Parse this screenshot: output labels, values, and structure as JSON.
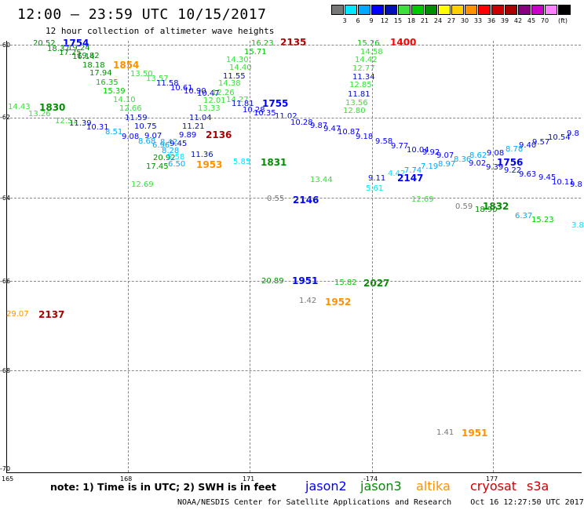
{
  "title": "12:00 – 23:59 UTC 10/15/2017",
  "subtitle": "12 hour collection of altimeter wave heights",
  "color_legend": {
    "colors": [
      "#777777",
      "#00e7ff",
      "#00a9ff",
      "#0000ff",
      "#000fba",
      "#3be03b",
      "#00c900",
      "#008f00",
      "#ffff00",
      "#ffd000",
      "#ff9100",
      "#ff0000",
      "#cc0000",
      "#aa0000",
      "#880080",
      "#ca00ca",
      "#ff80ff",
      "#000000"
    ],
    "ticks": [
      "3",
      "6",
      "9",
      "12",
      "15",
      "18",
      "21",
      "24",
      "27",
      "30",
      "33",
      "36",
      "39",
      "42",
      "45",
      "70"
    ],
    "unit": "(ft)"
  },
  "axes": {
    "y_labels": [
      "-60",
      "-62",
      "-64",
      "-66",
      "-68",
      "-70"
    ],
    "x_labels": [
      "165",
      "168",
      "171",
      "-174",
      "177"
    ]
  },
  "readings": [
    {
      "t": "20.52",
      "c": "#008f00"
    },
    {
      "t": "18.37",
      "c": "#008f00"
    },
    {
      "t": "17.25",
      "c": "#008f00"
    },
    {
      "t": "16.14",
      "c": "#008f00"
    },
    {
      "t": "19.24",
      "c": "#008f00"
    },
    {
      "t": "19.82",
      "c": "#008f00"
    },
    {
      "t": "18.18",
      "c": "#008f00"
    },
    {
      "t": "17.94",
      "c": "#008f00"
    },
    {
      "t": "16.35",
      "c": "#00c900"
    },
    {
      "t": "15.39",
      "c": "#00c900"
    },
    {
      "t": "14.10",
      "c": "#3be03b"
    },
    {
      "t": "12.66",
      "c": "#3be03b"
    },
    {
      "t": "13.50",
      "c": "#3be03b"
    },
    {
      "t": "13.57",
      "c": "#3be03b"
    },
    {
      "t": "11.59",
      "c": "#000fba"
    },
    {
      "t": "10.75",
      "c": "#0000ff"
    },
    {
      "t": "9.07",
      "c": "#0000ff"
    },
    {
      "t": "9.08",
      "c": "#0000ff"
    },
    {
      "t": "8.51",
      "c": "#00a9ff"
    },
    {
      "t": "10.31",
      "c": "#0000ff"
    },
    {
      "t": "11.39",
      "c": "#000fba"
    },
    {
      "t": "12.51",
      "c": "#3be03b"
    },
    {
      "t": "13.26",
      "c": "#3be03b"
    },
    {
      "t": "14.43",
      "c": "#3be03b"
    },
    {
      "t": "8.68",
      "c": "#00a9ff"
    },
    {
      "t": "6.96",
      "c": "#00a9ff"
    },
    {
      "t": "8.42",
      "c": "#00a9ff"
    },
    {
      "t": "9.45",
      "c": "#0000ff"
    },
    {
      "t": "8.28",
      "c": "#00a9ff"
    },
    {
      "t": "5.58",
      "c": "#00e7ff"
    },
    {
      "t": "9.89",
      "c": "#0000ff"
    },
    {
      "t": "11.21",
      "c": "#000fba"
    },
    {
      "t": "11.04",
      "c": "#000fba"
    },
    {
      "t": "13.33",
      "c": "#3be03b"
    },
    {
      "t": "12.01",
      "c": "#3be03b"
    },
    {
      "t": "12.26",
      "c": "#3be03b"
    },
    {
      "t": "14.27",
      "c": "#3be03b"
    },
    {
      "t": "14.38",
      "c": "#3be03b"
    },
    {
      "t": "11.55",
      "c": "#000fba"
    },
    {
      "t": "14.40",
      "c": "#3be03b"
    },
    {
      "t": "14.30",
      "c": "#3be03b"
    },
    {
      "t": "15.71",
      "c": "#00c900"
    },
    {
      "t": "16.23",
      "c": "#00c900"
    },
    {
      "t": "11.58",
      "c": "#000fba"
    },
    {
      "t": "10.61",
      "c": "#0000ff"
    },
    {
      "t": "10.90",
      "c": "#0000ff"
    },
    {
      "t": "10.47",
      "c": "#0000ff"
    },
    {
      "t": "11.81",
      "c": "#000fba"
    },
    {
      "t": "10.28",
      "c": "#0000ff"
    },
    {
      "t": "10.35",
      "c": "#0000ff"
    },
    {
      "t": "11.02",
      "c": "#000fba"
    },
    {
      "t": "10.28",
      "c": "#0000ff"
    },
    {
      "t": "9.87",
      "c": "#0000ff"
    },
    {
      "t": "9.47",
      "c": "#0000ff"
    },
    {
      "t": "10.87",
      "c": "#0000ff"
    },
    {
      "t": "9.18",
      "c": "#0000ff"
    },
    {
      "t": "9.58",
      "c": "#0000ff"
    },
    {
      "t": "9.77",
      "c": "#0000ff"
    },
    {
      "t": "10.04",
      "c": "#0000ff"
    },
    {
      "t": "9.92",
      "c": "#0000ff"
    },
    {
      "t": "9.07",
      "c": "#0000ff"
    },
    {
      "t": "8.62",
      "c": "#00a9ff"
    },
    {
      "t": "9.08",
      "c": "#0000ff"
    },
    {
      "t": "8.78",
      "c": "#00a9ff"
    },
    {
      "t": "9.40",
      "c": "#0000ff"
    },
    {
      "t": "9.57",
      "c": "#0000ff"
    },
    {
      "t": "10.54",
      "c": "#0000ff"
    },
    {
      "t": "9.8",
      "c": "#0000ff"
    },
    {
      "t": "9.02",
      "c": "#0000ff"
    },
    {
      "t": "9.39",
      "c": "#0000ff"
    },
    {
      "t": "9.22",
      "c": "#0000ff"
    },
    {
      "t": "9.63",
      "c": "#0000ff"
    },
    {
      "t": "9.45",
      "c": "#0000ff"
    },
    {
      "t": "10.11",
      "c": "#0000ff"
    },
    {
      "t": "9.8",
      "c": "#0000ff"
    },
    {
      "t": "8.36",
      "c": "#00a9ff"
    },
    {
      "t": "8.97",
      "c": "#00a9ff"
    },
    {
      "t": "7.19",
      "c": "#00a9ff"
    },
    {
      "t": "7.74",
      "c": "#00a9ff"
    },
    {
      "t": "4.42",
      "c": "#00e7ff"
    },
    {
      "t": "9.11",
      "c": "#0000ff"
    },
    {
      "t": "5.61",
      "c": "#00e7ff"
    },
    {
      "t": "15.26",
      "c": "#00c900"
    },
    {
      "t": "14.58",
      "c": "#3be03b"
    },
    {
      "t": "14.42",
      "c": "#3be03b"
    },
    {
      "t": "12.77",
      "c": "#3be03b"
    },
    {
      "t": "11.34",
      "c": "#000fba"
    },
    {
      "t": "12.85",
      "c": "#3be03b"
    },
    {
      "t": "11.81",
      "c": "#000fba"
    },
    {
      "t": "13.56",
      "c": "#3be03b"
    },
    {
      "t": "12.80",
      "c": "#3be03b"
    },
    {
      "t": "20.92",
      "c": "#008f00"
    },
    {
      "t": "17.45",
      "c": "#008f00"
    },
    {
      "t": "6.50",
      "c": "#00a9ff"
    },
    {
      "t": "11.36",
      "c": "#000fba"
    },
    {
      "t": "12.69",
      "c": "#3be03b"
    },
    {
      "t": "5.85",
      "c": "#00e7ff"
    },
    {
      "t": "13.44",
      "c": "#3be03b"
    },
    {
      "t": "0.55",
      "c": "#777777"
    },
    {
      "t": "12.69",
      "c": "#3be03b"
    },
    {
      "t": "0.59",
      "c": "#777777"
    },
    {
      "t": "18.90",
      "c": "#008f00"
    },
    {
      "t": "6.37",
      "c": "#00a9ff"
    },
    {
      "t": "15.23",
      "c": "#00c900"
    },
    {
      "t": "3.8",
      "c": "#00e7ff"
    },
    {
      "t": "20.89",
      "c": "#008f00"
    },
    {
      "t": "15.82",
      "c": "#00c900"
    },
    {
      "t": "1.42",
      "c": "#777777"
    },
    {
      "t": "29.07",
      "c": "#ff9100"
    },
    {
      "t": "1.41",
      "c": "#777777"
    }
  ],
  "time_labels": [
    {
      "t": "1754",
      "c": "#0000ff"
    },
    {
      "t": "1854",
      "c": "#ff9100"
    },
    {
      "t": "1830",
      "c": "#008f00"
    },
    {
      "t": "2136",
      "c": "#aa0000"
    },
    {
      "t": "1953",
      "c": "#ff9100"
    },
    {
      "t": "1831",
      "c": "#008f00"
    },
    {
      "t": "1755",
      "c": "#0000ff"
    },
    {
      "t": "2135",
      "c": "#aa0000"
    },
    {
      "t": "1400",
      "c": "#ff0000"
    },
    {
      "t": "2146",
      "c": "#0000ff"
    },
    {
      "t": "2147",
      "c": "#0000ff"
    },
    {
      "t": "1756",
      "c": "#0000ff"
    },
    {
      "t": "1832",
      "c": "#008f00"
    },
    {
      "t": "1951",
      "c": "#0000ff"
    },
    {
      "t": "2027",
      "c": "#008f00"
    },
    {
      "t": "1952",
      "c": "#ff9100"
    },
    {
      "t": "2137",
      "c": "#aa0000"
    },
    {
      "t": "1951",
      "c": "#ff9100"
    }
  ],
  "footer": {
    "note": "note:  1) Time is in UTC;  2) SWH is in feet",
    "satellites": [
      {
        "name": "jason2",
        "c": "#0000ff"
      },
      {
        "name": "jason3",
        "c": "#008f00"
      },
      {
        "name": "altika",
        "c": "#ff9100"
      },
      {
        "name": "cryosat",
        "c": "#cc0000"
      },
      {
        "name": "s3a",
        "c": "#cc0000"
      }
    ],
    "credit": "NOAA/NESDIS Center for Satellite Applications and Research    Oct 16 12:27:50 UTC 2017"
  }
}
